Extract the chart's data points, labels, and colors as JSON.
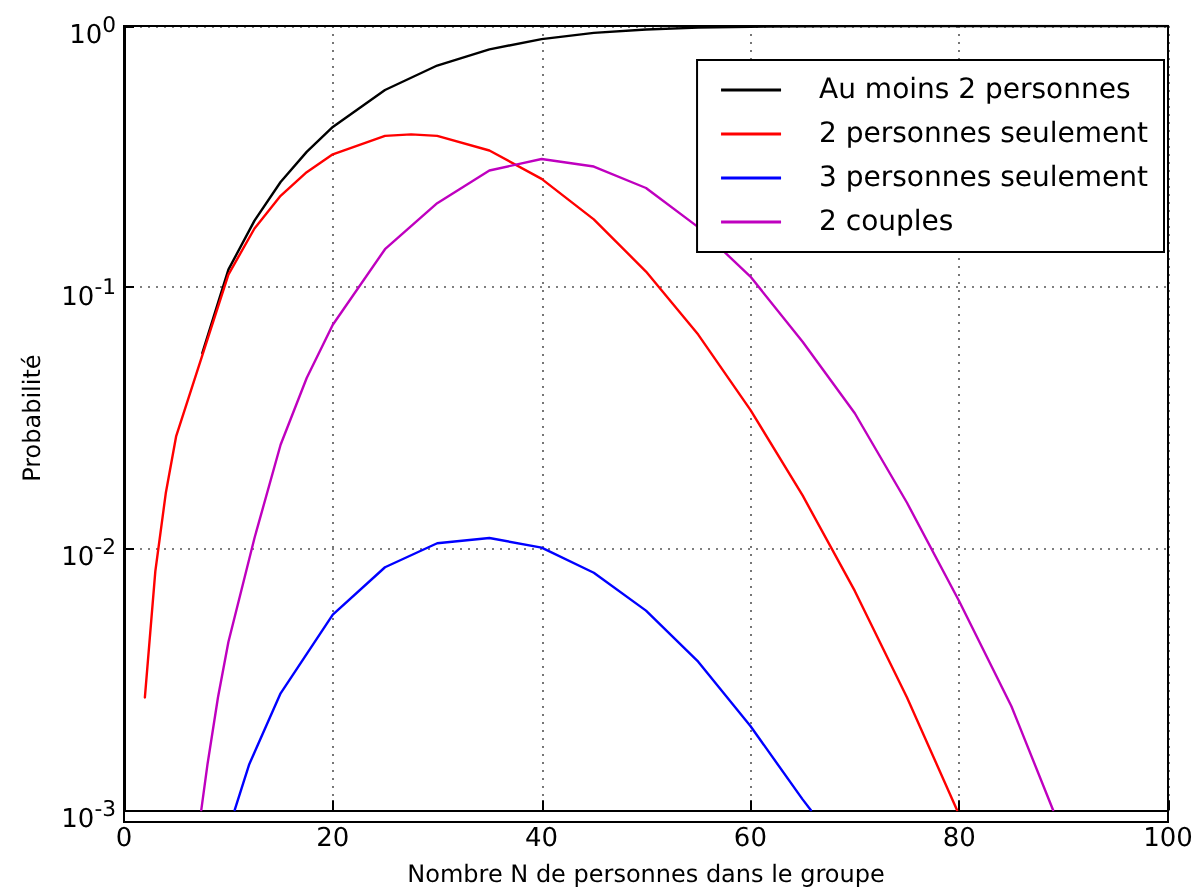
{
  "chart_data": {
    "type": "line",
    "xlabel": "Nombre N de personnes dans le groupe",
    "ylabel": "Probabilité",
    "log": "y",
    "xlim": [
      0,
      100
    ],
    "xticks": [
      0,
      20,
      40,
      60,
      80,
      100
    ],
    "ylim": [
      0.001,
      1
    ],
    "yticks": [
      {
        "value": 0.001,
        "label": "10$^{-3}$"
      },
      {
        "value": 0.01,
        "label": "10$^{-2}$"
      },
      {
        "value": 0.1,
        "label": "10$^{-1}$"
      },
      {
        "value": 1,
        "label": "10$^{0}$"
      }
    ],
    "grid": true,
    "legend": "top right",
    "marker": "none",
    "line_style": "solid",
    "series": [
      {
        "name": "Au moins 2 personnes",
        "color": "#000000",
        "x": [
          7.5,
          10,
          12.5,
          15,
          17.5,
          20,
          25,
          30,
          35,
          40,
          45,
          50,
          55,
          60,
          65,
          70,
          80,
          90,
          100
        ],
        "values": [
          0.056,
          0.117,
          0.18,
          0.253,
          0.33,
          0.411,
          0.569,
          0.706,
          0.814,
          0.891,
          0.941,
          0.97,
          0.986,
          0.994,
          0.998,
          0.999,
          1,
          1,
          1
        ]
      },
      {
        "name": "2 personnes seulement",
        "color": "#ff0000",
        "x": [
          2,
          3,
          4,
          5,
          7.5,
          10,
          12.5,
          15,
          17.5,
          20,
          25,
          27.5,
          30,
          35,
          40,
          45,
          50,
          55,
          60,
          65,
          70,
          75,
          79.8
        ],
        "values": [
          0.0027,
          0.0082,
          0.0163,
          0.027,
          0.055,
          0.112,
          0.168,
          0.224,
          0.276,
          0.323,
          0.38,
          0.385,
          0.38,
          0.334,
          0.26,
          0.182,
          0.115,
          0.066,
          0.034,
          0.016,
          0.0069,
          0.0027,
          0.001
        ]
      },
      {
        "name": "3 personnes seulement",
        "color": "#0000ff",
        "x": [
          10.6,
          12,
          15,
          20,
          25,
          30,
          35,
          40,
          45,
          50,
          55,
          60,
          65,
          65.8
        ],
        "values": [
          0.001,
          0.0015,
          0.0028,
          0.0056,
          0.0085,
          0.0105,
          0.011,
          0.0101,
          0.0081,
          0.0058,
          0.0037,
          0.0021,
          0.0011,
          0.001
        ]
      },
      {
        "name": "2 couples",
        "color": "#bf00bf",
        "x": [
          7.4,
          8,
          9,
          10,
          12.5,
          15,
          17.5,
          20,
          25,
          30,
          35,
          40,
          45,
          50,
          55,
          60,
          65,
          70,
          75,
          80,
          85,
          89
        ],
        "values": [
          0.001,
          0.0015,
          0.0027,
          0.0044,
          0.011,
          0.025,
          0.045,
          0.072,
          0.14,
          0.21,
          0.28,
          0.31,
          0.29,
          0.24,
          0.17,
          0.11,
          0.062,
          0.033,
          0.015,
          0.0063,
          0.0025,
          0.001
        ]
      }
    ]
  }
}
